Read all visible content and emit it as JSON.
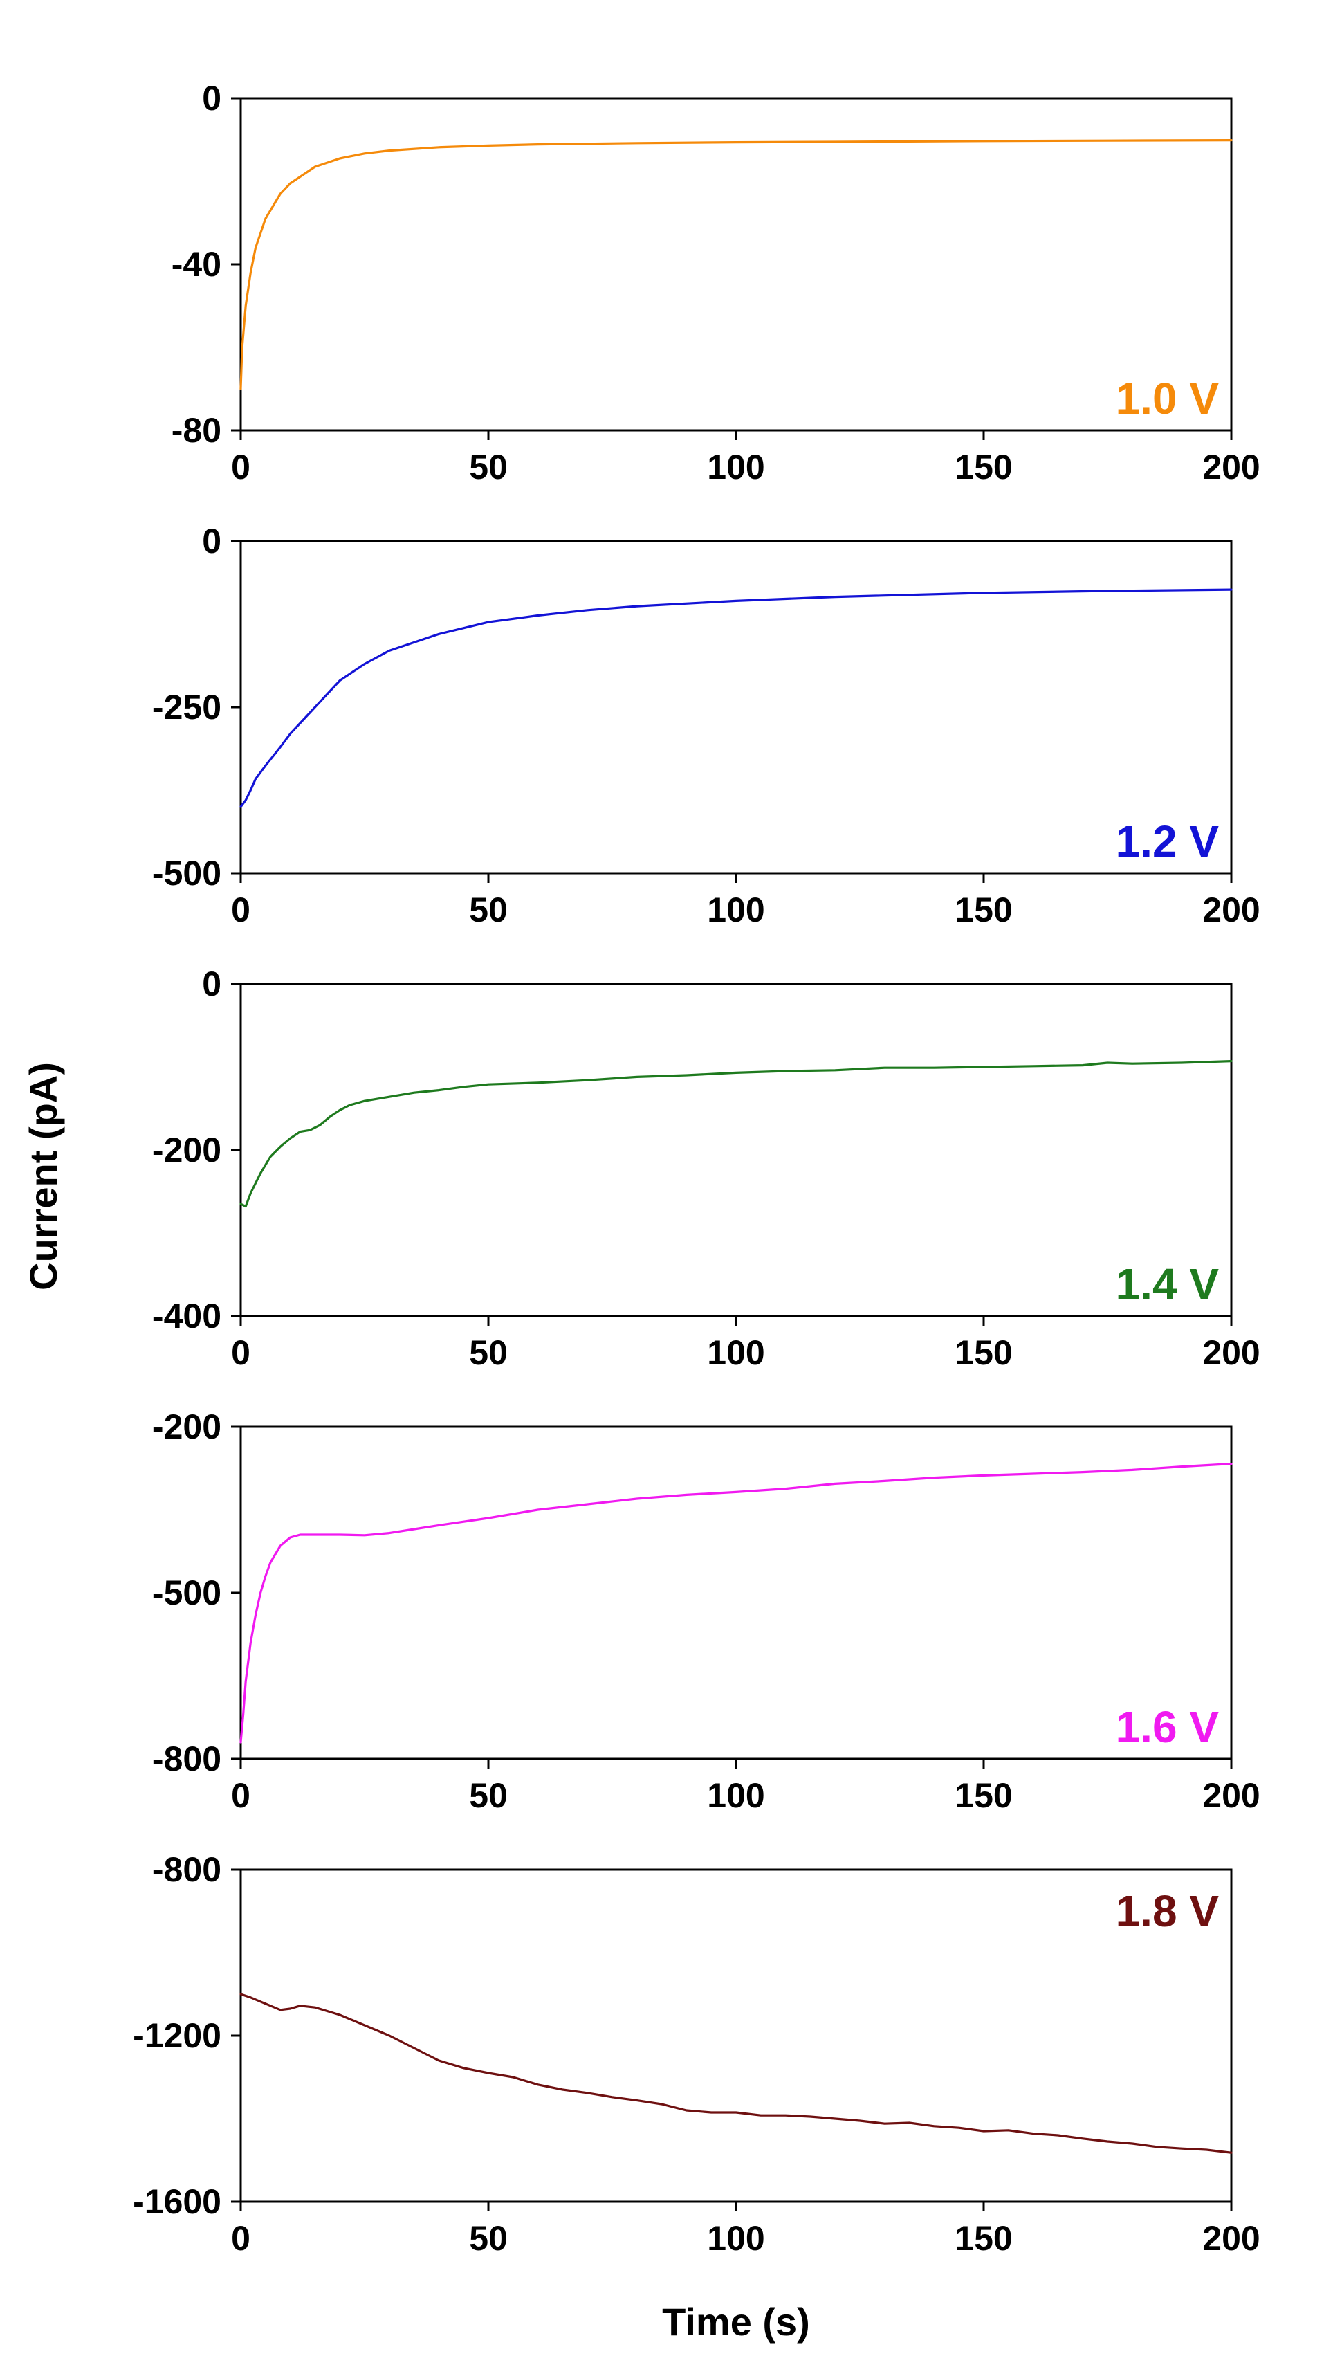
{
  "chart_data": {
    "type": "line",
    "xlabel": "Time (s)",
    "ylabel": "Current (pA)",
    "shared_x": {
      "xlim": [
        0,
        200
      ],
      "xticks": [
        0,
        50,
        100,
        150,
        200
      ]
    },
    "panels": [
      {
        "label": "1.0 V",
        "color": "#F58A0A",
        "ylim": [
          -80,
          0
        ],
        "yticks": [
          0,
          -40,
          -80
        ],
        "xticks_shown": true,
        "series": {
          "x": [
            0,
            0.3,
            1,
            2,
            3,
            5,
            8,
            10,
            15,
            20,
            25,
            30,
            40,
            50,
            60,
            80,
            100,
            120,
            150,
            175,
            200
          ],
          "y": [
            -70,
            -60,
            -50,
            -42,
            -36,
            -29,
            -23,
            -20.5,
            -16.5,
            -14.5,
            -13.3,
            -12.6,
            -11.8,
            -11.4,
            -11.1,
            -10.8,
            -10.6,
            -10.5,
            -10.3,
            -10.2,
            -10.1
          ]
        }
      },
      {
        "label": "1.2 V",
        "color": "#1313D6",
        "ylim": [
          -500,
          0
        ],
        "yticks": [
          0,
          -250,
          -500
        ],
        "xticks_shown": true,
        "series": {
          "x": [
            0,
            1,
            2,
            3,
            5,
            8,
            10,
            15,
            20,
            25,
            30,
            40,
            50,
            60,
            70,
            80,
            100,
            120,
            150,
            175,
            200
          ],
          "y": [
            -400,
            -390,
            -375,
            -358,
            -338,
            -310,
            -290,
            -250,
            -210,
            -185,
            -165,
            -140,
            -122,
            -112,
            -104,
            -98,
            -90,
            -84,
            -78,
            -75,
            -73
          ]
        }
      },
      {
        "label": "1.4 V",
        "color": "#1E7A1E",
        "ylim": [
          -400,
          0
        ],
        "yticks": [
          0,
          -200,
          -400
        ],
        "xticks_shown": true,
        "series": {
          "x": [
            0,
            1,
            2,
            4,
            6,
            8,
            10,
            12,
            14,
            16,
            18,
            20,
            22,
            25,
            28,
            30,
            35,
            40,
            45,
            50,
            60,
            70,
            80,
            90,
            100,
            110,
            120,
            130,
            140,
            150,
            160,
            170,
            175,
            180,
            190,
            200
          ],
          "y": [
            -265,
            -268,
            -252,
            -228,
            -208,
            -196,
            -186,
            -178,
            -176,
            -170,
            -160,
            -152,
            -146,
            -141,
            -138,
            -136,
            -131,
            -128,
            -124,
            -121,
            -119,
            -116,
            -112,
            -110,
            -107,
            -105,
            -104,
            -101,
            -101,
            -100,
            -99,
            -98,
            -95,
            -96,
            -95,
            -93
          ]
        }
      },
      {
        "label": "1.6 V",
        "color": "#F01AF0",
        "ylim": [
          -800,
          -200
        ],
        "yticks": [
          -200,
          -500,
          -800
        ],
        "xticks_shown": true,
        "series": {
          "x": [
            0,
            0.5,
            1,
            2,
            3,
            4,
            5,
            6,
            8,
            10,
            12,
            14,
            16,
            20,
            25,
            30,
            35,
            40,
            50,
            60,
            70,
            80,
            90,
            100,
            110,
            120,
            130,
            140,
            150,
            160,
            170,
            180,
            190,
            200
          ],
          "y": [
            -770,
            -720,
            -660,
            -590,
            -540,
            -500,
            -470,
            -445,
            -415,
            -400,
            -395,
            -395,
            -395,
            -395,
            -396,
            -392,
            -385,
            -378,
            -365,
            -350,
            -340,
            -330,
            -323,
            -318,
            -312,
            -303,
            -298,
            -292,
            -288,
            -285,
            -282,
            -278,
            -272,
            -267
          ]
        }
      },
      {
        "label": "1.8 V",
        "color": "#6E1010",
        "ylim": [
          -1600,
          -800
        ],
        "yticks": [
          -800,
          -1200,
          -1600
        ],
        "xticks_shown": true,
        "series": {
          "x": [
            0,
            2,
            4,
            6,
            8,
            10,
            12,
            15,
            20,
            25,
            30,
            35,
            40,
            45,
            50,
            55,
            60,
            65,
            70,
            75,
            80,
            85,
            90,
            95,
            100,
            105,
            110,
            115,
            120,
            125,
            130,
            135,
            140,
            145,
            150,
            155,
            160,
            165,
            170,
            175,
            180,
            185,
            190,
            195,
            200
          ],
          "y": [
            -1100,
            -1108,
            -1118,
            -1128,
            -1138,
            -1135,
            -1128,
            -1132,
            -1150,
            -1175,
            -1200,
            -1230,
            -1260,
            -1278,
            -1290,
            -1300,
            -1318,
            -1330,
            -1338,
            -1348,
            -1356,
            -1365,
            -1380,
            -1385,
            -1385,
            -1392,
            -1392,
            -1395,
            -1400,
            -1405,
            -1412,
            -1410,
            -1418,
            -1422,
            -1430,
            -1428,
            -1436,
            -1440,
            -1448,
            -1455,
            -1460,
            -1468,
            -1472,
            -1475,
            -1482
          ]
        }
      }
    ]
  }
}
